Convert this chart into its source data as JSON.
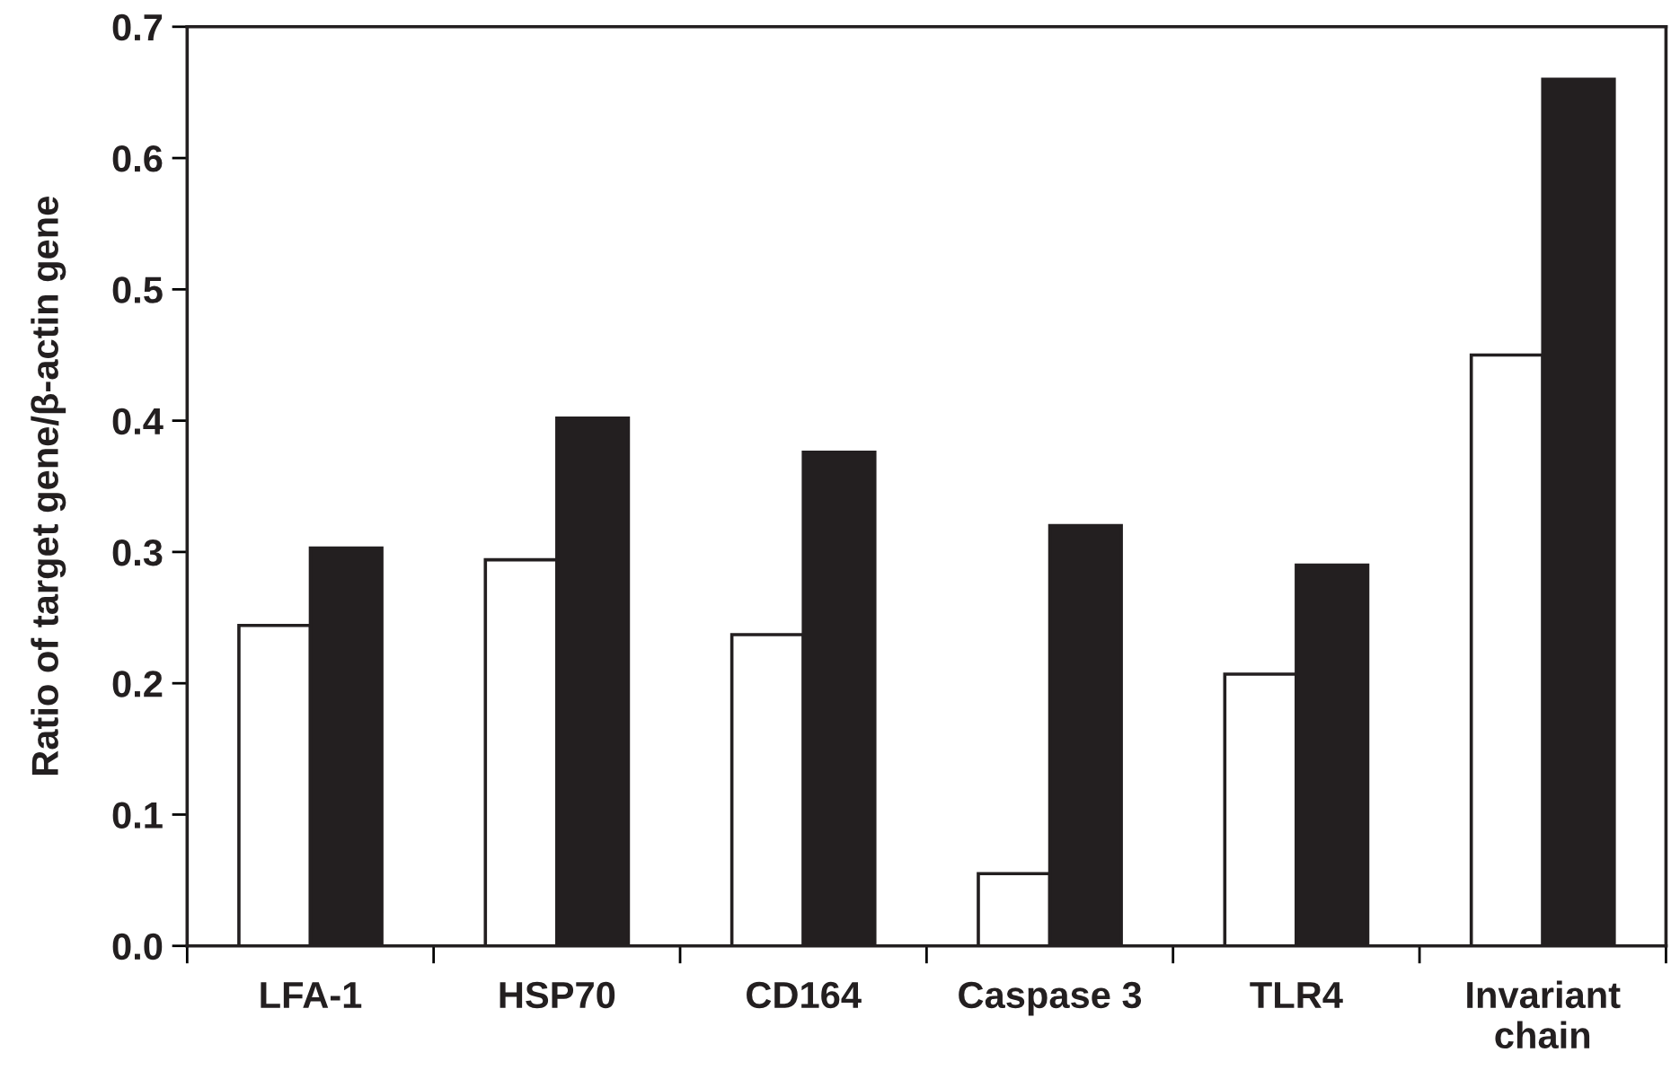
{
  "chart_data": {
    "type": "bar",
    "ylabel": "Ratio of target gene/β-actin gene",
    "categories": [
      "LFA-1",
      "HSP70",
      "CD164",
      "Caspase 3",
      "TLR4",
      "Invariant\nchain"
    ],
    "series": [
      {
        "color": "#ffffff",
        "values": [
          0.244,
          0.294,
          0.237,
          0.055,
          0.207,
          0.45
        ]
      },
      {
        "color": "#231f20",
        "values": [
          0.303,
          0.402,
          0.376,
          0.32,
          0.29,
          0.66
        ]
      }
    ],
    "ylim": [
      0,
      0.7
    ],
    "yticks": [
      {
        "value": 0,
        "label": "0.0"
      },
      0.1,
      0.2,
      0.3,
      0.4,
      0.5,
      0.6,
      0.7
    ],
    "grid": false
  }
}
